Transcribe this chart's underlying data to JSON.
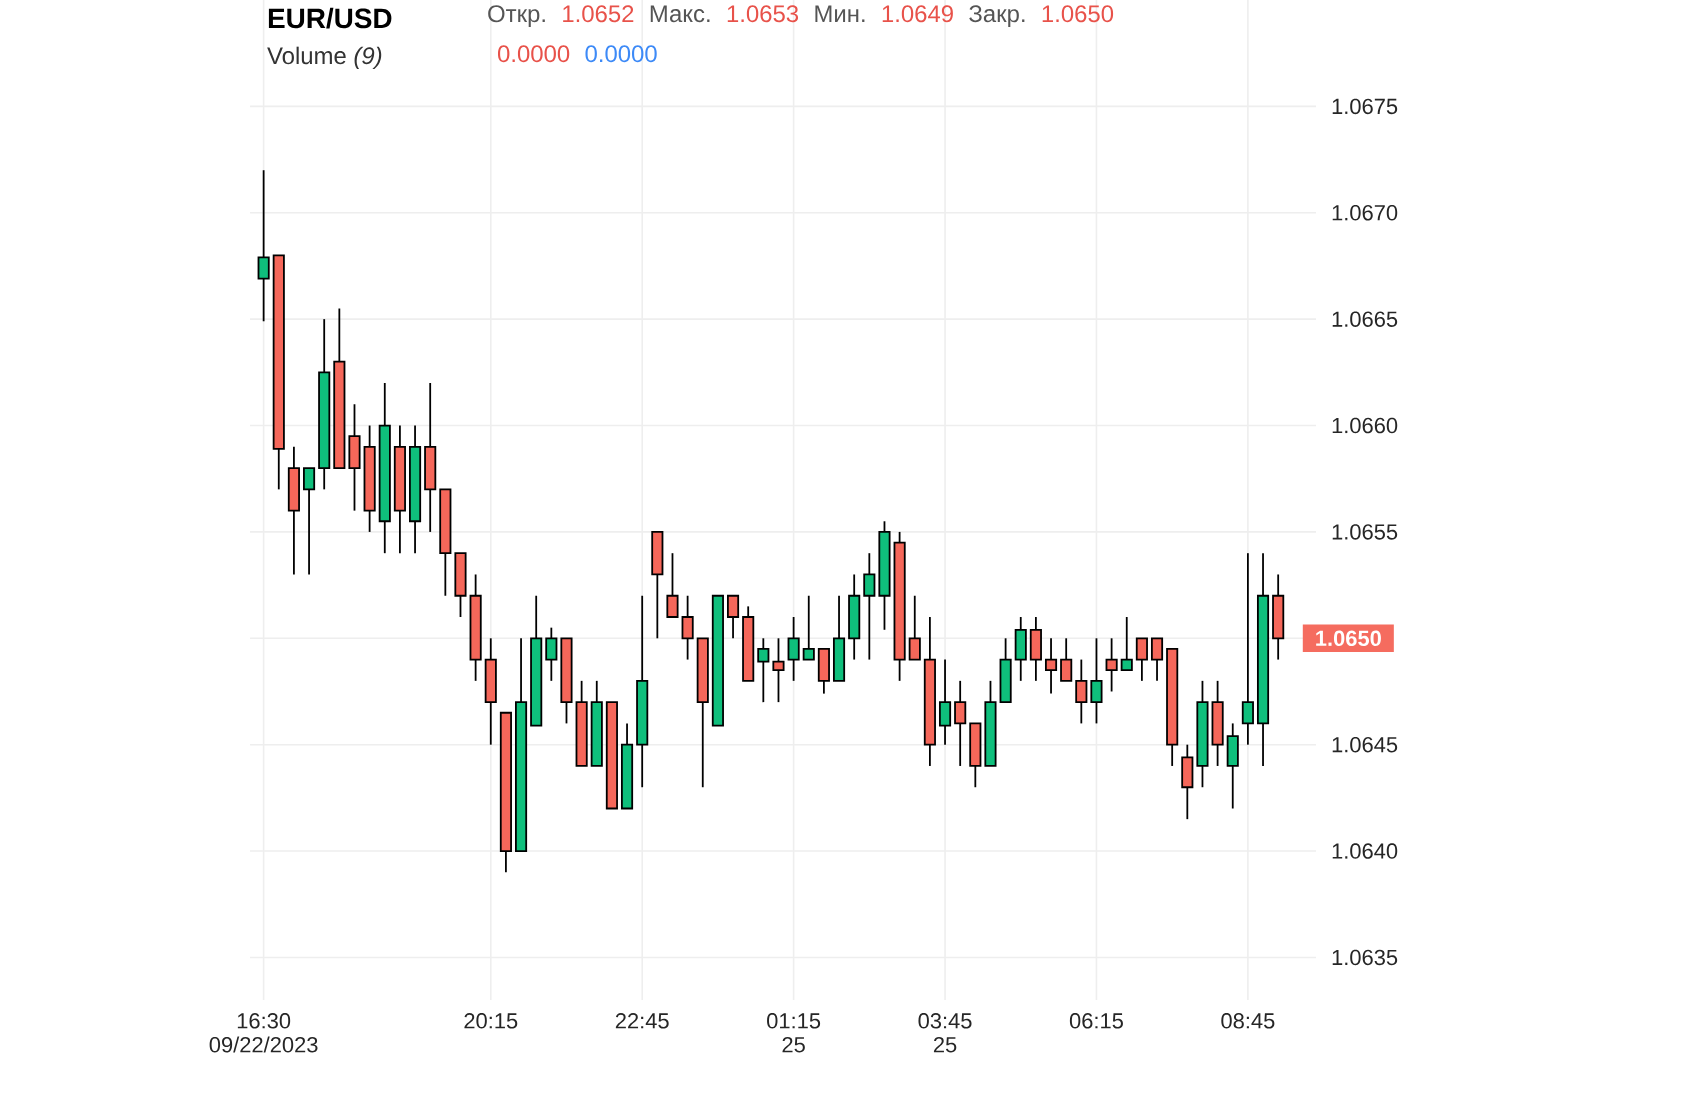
{
  "chart_data": {
    "type": "candlestick",
    "title": "EUR/USD",
    "annotations": [
      "Откр.",
      "1.0652",
      "Макс.",
      "1.0653",
      "Мин.",
      "1.0649",
      "Закр.",
      "1.0650",
      "Volume *(9)*",
      "0.0000",
      "0.0000",
      "1.0650"
    ],
    "categories": [
      "16:30 09/22/2023",
      null,
      null,
      null,
      null,
      null,
      null,
      null,
      null,
      null,
      null,
      null,
      null,
      null,
      null,
      "20:15",
      null,
      null,
      null,
      null,
      null,
      null,
      null,
      null,
      null,
      "22:45",
      null,
      null,
      null,
      null,
      null,
      null,
      null,
      null,
      null,
      "01:15 25",
      null,
      null,
      null,
      null,
      null,
      null,
      null,
      null,
      null,
      "03:45 25",
      null,
      null,
      null,
      null,
      null,
      null,
      null,
      null,
      null,
      "06:15",
      null,
      null,
      null,
      null,
      null,
      null,
      null,
      null,
      null,
      "08:45",
      null,
      null
    ],
    "ohlc": [
      [
        1.06669,
        1.0672,
        1.06649,
        1.06679
      ],
      [
        1.0668,
        1.0668,
        1.0657,
        1.06589
      ],
      [
        1.0658,
        1.0659,
        1.0653,
        1.0656
      ],
      [
        1.0657,
        1.0658,
        1.0653,
        1.0658
      ],
      [
        1.0658,
        1.0665,
        1.0657,
        1.06625
      ],
      [
        1.0663,
        1.06655,
        1.0658,
        1.0658
      ],
      [
        1.06595,
        1.0661,
        1.0656,
        1.0658
      ],
      [
        1.0659,
        1.066,
        1.0655,
        1.0656
      ],
      [
        1.06555,
        1.0662,
        1.0654,
        1.066
      ],
      [
        1.0659,
        1.066,
        1.0654,
        1.0656
      ],
      [
        1.06555,
        1.066,
        1.0654,
        1.0659
      ],
      [
        1.0659,
        1.0662,
        1.0655,
        1.0657
      ],
      [
        1.0657,
        1.0657,
        1.0652,
        1.0654
      ],
      [
        1.0654,
        1.0654,
        1.0651,
        1.0652
      ],
      [
        1.0652,
        1.0653,
        1.0648,
        1.0649
      ],
      [
        1.0649,
        1.065,
        1.0645,
        1.0647
      ],
      [
        1.06465,
        1.06465,
        1.0639,
        1.064
      ],
      [
        1.064,
        1.065,
        1.064,
        1.0647
      ],
      [
        1.06459,
        1.0652,
        1.06459,
        1.065
      ],
      [
        1.0649,
        1.06505,
        1.0648,
        1.065
      ],
      [
        1.065,
        1.065,
        1.0646,
        1.0647
      ],
      [
        1.0647,
        1.0648,
        1.0644,
        1.0644
      ],
      [
        1.0644,
        1.0648,
        1.0644,
        1.0647
      ],
      [
        1.0647,
        1.0647,
        1.0642,
        1.0642
      ],
      [
        1.0642,
        1.0646,
        1.0642,
        1.0645
      ],
      [
        1.0645,
        1.0652,
        1.0643,
        1.0648
      ],
      [
        1.0655,
        1.0655,
        1.065,
        1.0653
      ],
      [
        1.0652,
        1.0654,
        1.0651,
        1.0651
      ],
      [
        1.0651,
        1.0652,
        1.0649,
        1.065
      ],
      [
        1.065,
        1.065,
        1.0643,
        1.0647
      ],
      [
        1.06459,
        1.0652,
        1.06459,
        1.0652
      ],
      [
        1.0652,
        1.0652,
        1.065,
        1.0651
      ],
      [
        1.0651,
        1.06515,
        1.0648,
        1.0648
      ],
      [
        1.06489,
        1.065,
        1.0647,
        1.06495
      ],
      [
        1.06489,
        1.065,
        1.0647,
        1.06485
      ],
      [
        1.0649,
        1.0651,
        1.0648,
        1.065
      ],
      [
        1.0649,
        1.0652,
        1.0649,
        1.06495
      ],
      [
        1.06495,
        1.06495,
        1.06474,
        1.0648
      ],
      [
        1.0648,
        1.0652,
        1.0648,
        1.065
      ],
      [
        1.065,
        1.0653,
        1.0649,
        1.0652
      ],
      [
        1.0652,
        1.0654,
        1.0649,
        1.0653
      ],
      [
        1.0652,
        1.06555,
        1.06504,
        1.0655
      ],
      [
        1.06545,
        1.0655,
        1.0648,
        1.0649
      ],
      [
        1.065,
        1.0652,
        1.0649,
        1.0649
      ],
      [
        1.0649,
        1.0651,
        1.0644,
        1.0645
      ],
      [
        1.06459,
        1.0649,
        1.0645,
        1.0647
      ],
      [
        1.0647,
        1.0648,
        1.0644,
        1.0646
      ],
      [
        1.0646,
        1.0646,
        1.0643,
        1.0644
      ],
      [
        1.0644,
        1.0648,
        1.0644,
        1.0647
      ],
      [
        1.0647,
        1.065,
        1.0647,
        1.0649
      ],
      [
        1.0649,
        1.0651,
        1.0648,
        1.06504
      ],
      [
        1.06504,
        1.0651,
        1.0648,
        1.0649
      ],
      [
        1.0649,
        1.065,
        1.06474,
        1.06485
      ],
      [
        1.0649,
        1.065,
        1.0648,
        1.0648
      ],
      [
        1.0648,
        1.0649,
        1.0646,
        1.0647
      ],
      [
        1.0647,
        1.065,
        1.0646,
        1.0648
      ],
      [
        1.0649,
        1.065,
        1.06475,
        1.06485
      ],
      [
        1.06485,
        1.0651,
        1.06485,
        1.0649
      ],
      [
        1.065,
        1.065,
        1.0648,
        1.0649
      ],
      [
        1.065,
        1.065,
        1.0648,
        1.0649
      ],
      [
        1.06495,
        1.06495,
        1.0644,
        1.0645
      ],
      [
        1.06444,
        1.0645,
        1.06415,
        1.0643
      ],
      [
        1.0644,
        1.0648,
        1.0643,
        1.0647
      ],
      [
        1.0647,
        1.0648,
        1.0644,
        1.0645
      ],
      [
        1.0644,
        1.0646,
        1.0642,
        1.06454
      ],
      [
        1.0646,
        1.0654,
        1.0645,
        1.0647
      ],
      [
        1.0646,
        1.0654,
        1.0644,
        1.0652
      ],
      [
        1.0652,
        1.0653,
        1.0649,
        1.065
      ]
    ],
    "ylim": [
      1.0633,
      1.068
    ],
    "yticks": [
      1.0635,
      {
        "value": 1.064,
        "label": "1.0640"
      },
      1.0645,
      {
        "value": 1.065,
        "label": null
      },
      1.0655,
      {
        "value": 1.066,
        "label": "1.0660"
      },
      1.0665,
      {
        "value": 1.067,
        "label": "1.0670"
      },
      1.0675
    ],
    "grid": true
  }
}
